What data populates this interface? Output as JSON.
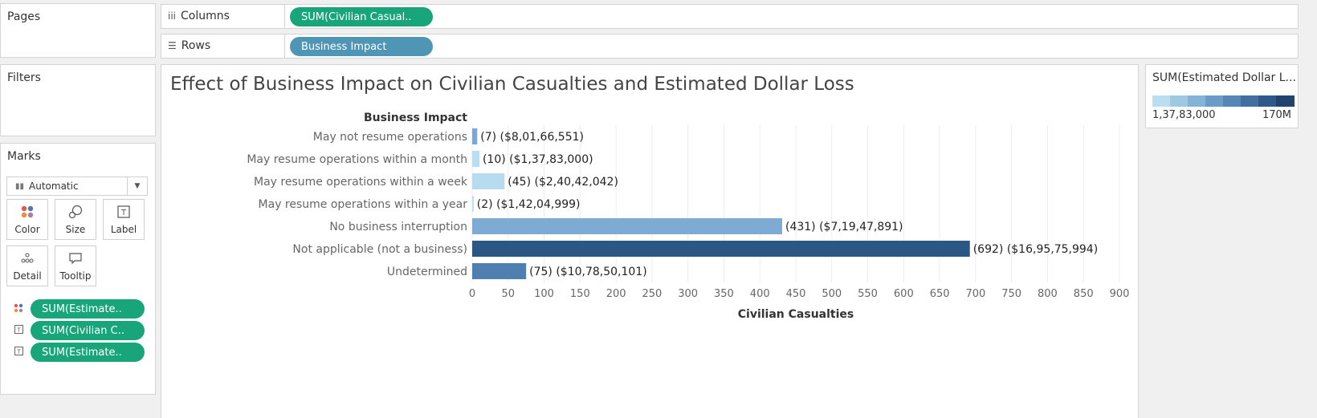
{
  "cards": {
    "pages": "Pages",
    "filters": "Filters",
    "marks": "Marks"
  },
  "marks": {
    "type": "Automatic",
    "buttons": [
      "Color",
      "Size",
      "Label",
      "Detail",
      "Tooltip"
    ],
    "fields": [
      "SUM(Estimate..",
      "SUM(Civilian C..",
      "SUM(Estimate.."
    ]
  },
  "shelves": {
    "columns_label": "Columns",
    "columns_pill": "SUM(Civilian Casual..",
    "rows_label": "Rows",
    "rows_pill": "Business Impact"
  },
  "legend": {
    "title": "SUM(Estimated Dollar L...",
    "min": "1,37,83,000",
    "max": "170M",
    "colors": [
      "#b9ddf1",
      "#9ecae1",
      "#84b3d8",
      "#6b9cc7",
      "#5586b5",
      "#416fa0",
      "#2f5988",
      "#1f456e"
    ]
  },
  "chart_data": {
    "type": "bar",
    "title": "Effect of  Business Impact on Civilian Casualties and Estimated Dollar Loss",
    "row_header": "Business Impact",
    "xlabel": "Civilian Casualties",
    "xlim": [
      0,
      900
    ],
    "xticks": [
      0,
      50,
      100,
      150,
      200,
      250,
      300,
      350,
      400,
      450,
      500,
      550,
      600,
      650,
      700,
      750,
      800,
      850,
      900
    ],
    "grid": true,
    "categories": [
      "May not resume operations",
      "May resume operations within a month",
      "May resume operations within a week",
      "May resume operations within a year",
      "No business interruption",
      "Not applicable (not a business)",
      "Undetermined"
    ],
    "values": [
      7,
      10,
      45,
      2,
      431,
      692,
      75
    ],
    "data_labels": [
      "(7) ($8,01,66,551)",
      "(10) ($1,37,83,000)",
      "(45) ($2,40,42,042)",
      "(2) ($1,42,04,999)",
      "(431) ($7,19,47,891)",
      "(692) ($16,95,75,994)",
      "(75) ($10,78,50,101)"
    ],
    "color_values": [
      80166551,
      13783000,
      24042042,
      14204999,
      71947891,
      169575994,
      107850101
    ],
    "colors": [
      "#7aa8d2",
      "#b9ddf1",
      "#b7dcf0",
      "#b9ddf1",
      "#7eabd4",
      "#2a5783",
      "#4f7fb1"
    ]
  }
}
